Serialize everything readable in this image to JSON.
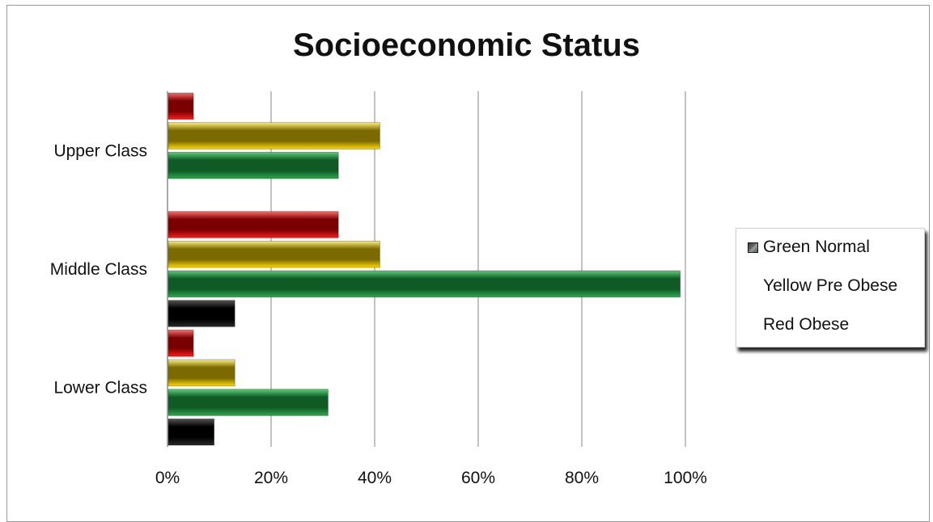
{
  "chart_data": {
    "type": "bar",
    "orientation": "horizontal",
    "title": "Socioeconomic Status",
    "xlabel": "",
    "ylabel": "",
    "xlim": [
      0,
      100
    ],
    "x_ticks": [
      "0%",
      "20%",
      "40%",
      "60%",
      "80%",
      "100%"
    ],
    "grid": true,
    "legend_position": "right",
    "categories": [
      "Upper Class",
      "Middle Class",
      "Lower Class"
    ],
    "series": [
      {
        "key": "black",
        "color": "#111111",
        "values": [
          null,
          13,
          9
        ]
      },
      {
        "name": "Green Normal",
        "color": "#1f8c3a",
        "values": [
          33,
          99,
          31
        ]
      },
      {
        "name": "Yellow Pre Obese",
        "color": "#f2d300",
        "values": [
          41,
          41,
          13
        ]
      },
      {
        "name": "Red Obese",
        "color": "#e01010",
        "values": [
          5,
          33,
          5
        ]
      }
    ]
  },
  "legend": {
    "items": [
      {
        "label": "Green Normal",
        "swatch": true
      },
      {
        "label": "Yellow Pre Obese",
        "swatch": false
      },
      {
        "label": "Red Obese",
        "swatch": false
      }
    ]
  }
}
